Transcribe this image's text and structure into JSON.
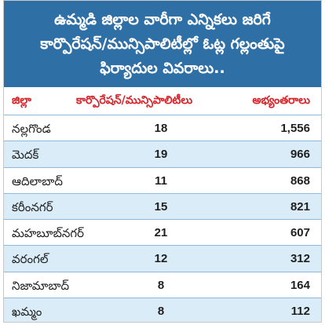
{
  "header": {
    "lines": [
      "ఉమ్మడి జిల్లాల వారీగా ఎన్నికలు జరిగే",
      "కార్పొరేషన్/మున్సిపాలిటీల్లో ఓట్ల గల్లంతుపై",
      "ఫిర్యాదుల వివరాలు.."
    ]
  },
  "columns": {
    "district": "జిల్లా",
    "count": "కార్పొరేషన్/మున్సిపాలిటీలు",
    "objections": "అభ్యంతరాలు"
  },
  "rows": [
    {
      "district": "నల్లగొండ",
      "count": "18",
      "objections": "1,556"
    },
    {
      "district": "మెదక్",
      "count": "19",
      "objections": "966"
    },
    {
      "district": "ఆదిలాబాద్",
      "count": "11",
      "objections": "868"
    },
    {
      "district": "కరీంనగర్",
      "count": "15",
      "objections": "821"
    },
    {
      "district": "మహబూబ్‌నగర్",
      "count": "21",
      "objections": "607"
    },
    {
      "district": "వరంగల్",
      "count": "12",
      "objections": "312"
    },
    {
      "district": "నిజామాబాద్",
      "count": "8",
      "objections": "164"
    },
    {
      "district": "ఖమ్మం",
      "count": "8",
      "objections": "112"
    }
  ]
}
